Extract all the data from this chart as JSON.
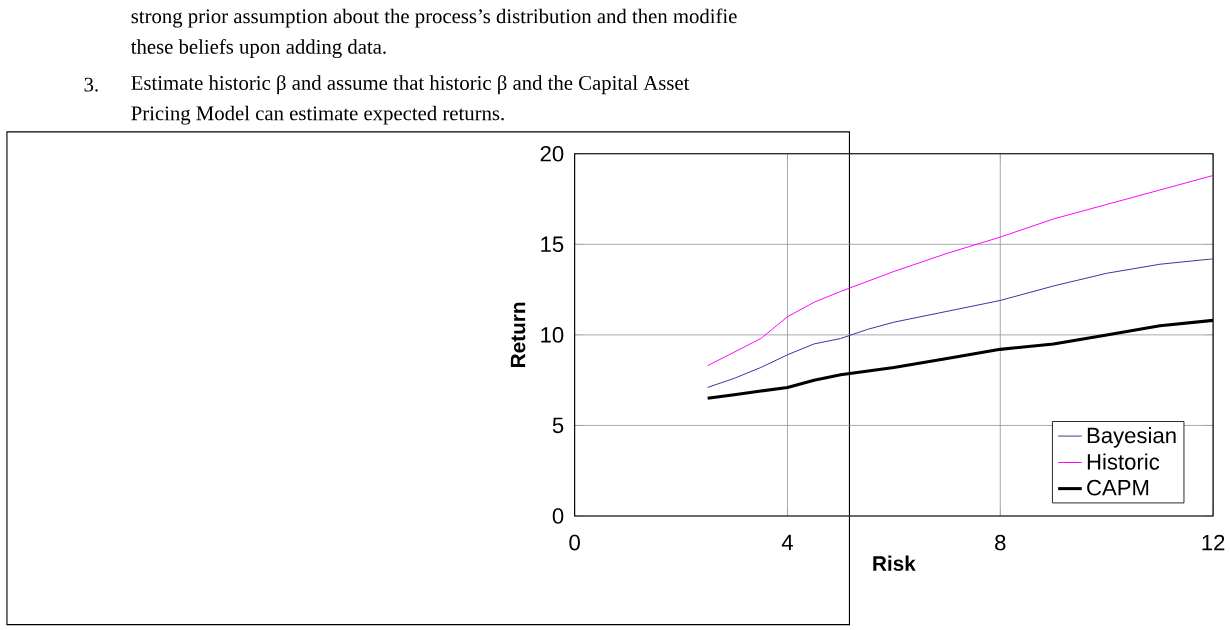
{
  "chart_data": {
    "type": "line",
    "annotations": [
      "strong prior assumption about the process’s distribution and then modifie",
      "these beliefs upon adding data.",
      "3.",
      "Estimate historic β and assume that historic β and the Capital Asset",
      "Pricing Model can estimate expected returns."
    ],
    "xlabel": "Risk",
    "ylabel": "Return",
    "xlim": [
      0,
      12
    ],
    "xticks": [
      0,
      4,
      8,
      12
    ],
    "ylim": [
      0,
      20
    ],
    "yticks": [
      0,
      5,
      10,
      15,
      20
    ],
    "grid": true,
    "legend": "bottom right",
    "marker": "none",
    "line_style": "solid",
    "series": [
      {
        "name": "Bayesian",
        "color": "#333399",
        "x": [
          2.5,
          3,
          3.5,
          4,
          4.5,
          5,
          5.5,
          6,
          7,
          8,
          9,
          10,
          11,
          12
        ],
        "values": [
          7.1,
          7.6,
          8.2,
          8.9,
          9.5,
          9.8,
          10.3,
          10.7,
          11.3,
          11.9,
          12.7,
          13.4,
          13.9,
          14.2
        ]
      },
      {
        "name": "Historic",
        "color": "#ff00ff",
        "x": [
          2.5,
          3.5,
          4,
          4.5,
          5,
          6,
          7,
          8,
          9,
          10,
          11,
          12
        ],
        "values": [
          8.3,
          9.8,
          11.0,
          11.8,
          12.4,
          13.5,
          14.5,
          15.4,
          16.4,
          17.2,
          18.0,
          18.8
        ]
      },
      {
        "name": "CAPM",
        "color": "#000000",
        "x": [
          2.5,
          3,
          3.5,
          4,
          4.5,
          5,
          6,
          7,
          8,
          9,
          10,
          11,
          12
        ],
        "values": [
          6.5,
          6.7,
          6.9,
          7.1,
          7.5,
          7.8,
          8.2,
          8.7,
          9.2,
          9.5,
          10.0,
          10.5,
          10.8
        ]
      }
    ]
  }
}
